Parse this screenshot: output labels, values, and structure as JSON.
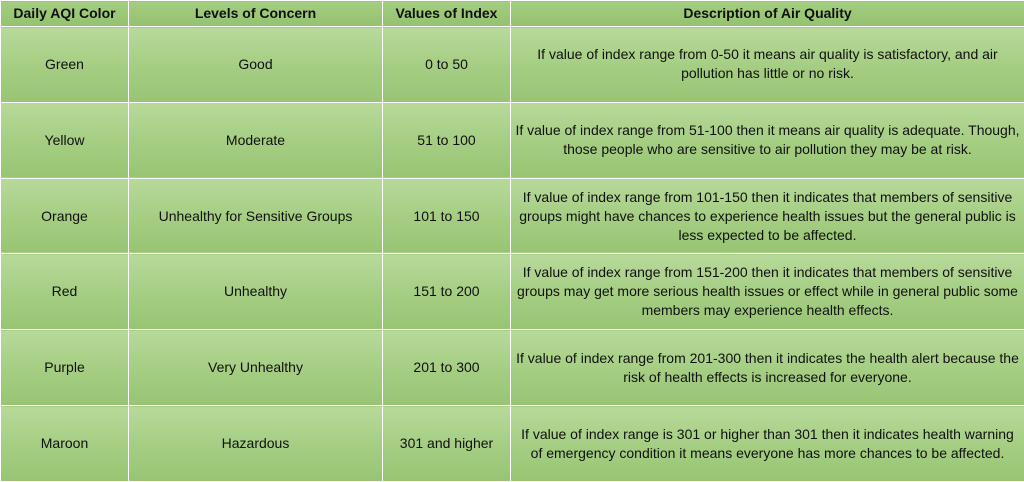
{
  "headers": {
    "color": "Daily AQI Color",
    "concern": "Levels of Concern",
    "index": "Values of Index",
    "description": "Description of Air Quality"
  },
  "rows": [
    {
      "color": "Green",
      "concern": "Good",
      "index": "0 to 50",
      "description": "If value of index range from 0-50 it means air quality is satisfactory, and air pollution has little or no risk."
    },
    {
      "color": "Yellow",
      "concern": "Moderate",
      "index": "51 to 100",
      "description": "If value of index range from 51-100 then it means air quality is adequate. Though, those people who are sensitive to air pollution they may be at risk."
    },
    {
      "color": "Orange",
      "concern": "Unhealthy for Sensitive Groups",
      "index": "101 to 150",
      "description": "If value of index range from 101-150 then it indicates that members of sensitive groups might have chances to experience health issues but the general public is less expected to be affected."
    },
    {
      "color": "Red",
      "concern": "Unhealthy",
      "index": "151 to 200",
      "description": "If value of index range from 151-200 then it indicates that members of sensitive groups may get more serious health issues or effect while in general public some members may experience health effects."
    },
    {
      "color": "Purple",
      "concern": "Very Unhealthy",
      "index": "201 to 300",
      "description": "If value of index range from 201-300 then it indicates the health alert because the risk of health effects is increased for everyone."
    },
    {
      "color": "Maroon",
      "concern": "Hazardous",
      "index": "301 and higher",
      "description": "If value of index range is 301 or higher than 301 then it indicates health warning of emergency condition it means everyone has more chances to be affected."
    }
  ]
}
